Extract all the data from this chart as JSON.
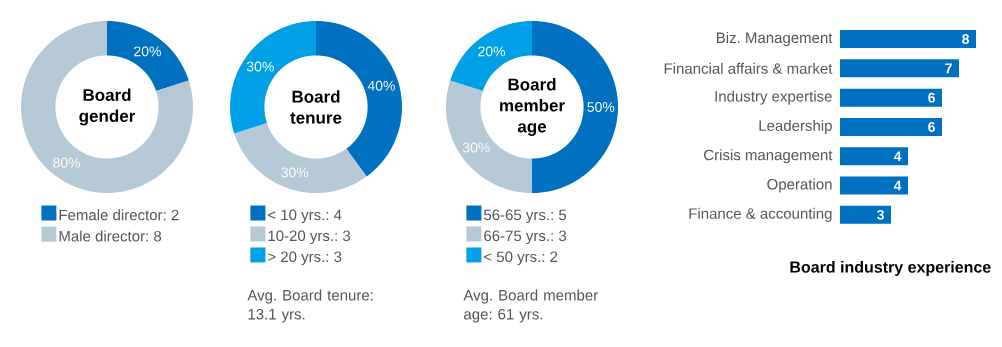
{
  "chart_data": [
    {
      "type": "donut",
      "title": "Board gender",
      "categories": [
        "Female director: 2",
        "Male director: 8"
      ],
      "values": [
        20,
        80
      ],
      "colors": [
        "#0070c0",
        "#b4c8d6"
      ],
      "value_labels": [
        "20%",
        "80%"
      ],
      "legend": "bottom"
    },
    {
      "type": "donut",
      "title": "Board tenure",
      "categories": [
        "< 10 yrs.: 4",
        "10-20 yrs.: 3",
        "> 20 yrs.: 3"
      ],
      "values": [
        40,
        30,
        30
      ],
      "colors": [
        "#0070c0",
        "#b4c8d6",
        "#00a0e6"
      ],
      "value_labels": [
        "40%",
        "30%",
        "30%"
      ],
      "legend": "bottom",
      "annotations": [
        "Avg. Board tenure: 13.1 yrs."
      ]
    },
    {
      "type": "donut",
      "title": "Board member age",
      "categories": [
        "56-65 yrs.: 5",
        "66-75 yrs.: 3",
        "< 50 yrs.: 2"
      ],
      "values": [
        50,
        30,
        20
      ],
      "colors": [
        "#0070c0",
        "#b4c8d6",
        "#00a0e6"
      ],
      "value_labels": [
        "50%",
        "30%",
        "20%"
      ],
      "legend": "bottom",
      "annotations": [
        "Avg. Board member age: 61 yrs."
      ]
    },
    {
      "type": "bar",
      "orientation": "horizontal",
      "title": "Board industry experience",
      "categories": [
        "Biz. Management",
        "Financial affairs & market",
        "Industry expertise",
        "Leadership",
        "Crisis management",
        "Operation",
        "Finance & accounting"
      ],
      "values": [
        8,
        7,
        6,
        6,
        4,
        4,
        3
      ],
      "color": "#0070c0",
      "data_labels": true
    }
  ]
}
